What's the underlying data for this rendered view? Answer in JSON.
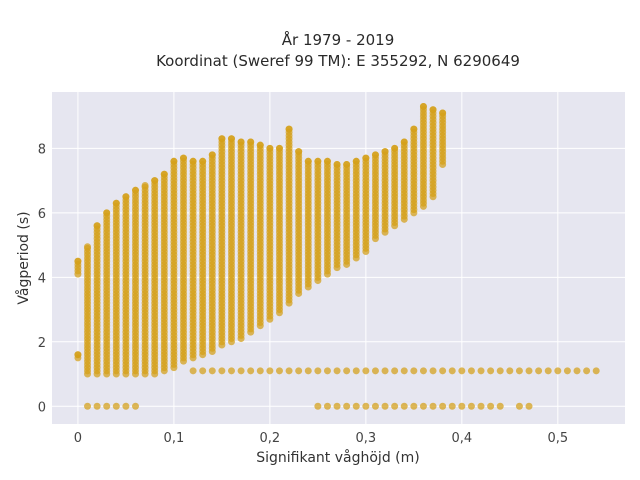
{
  "chart_data": {
    "type": "scatter",
    "title": "År 1979 - 2019",
    "subtitle": "Koordinat (Sweref 99 TM): E 355292, N 6290649",
    "xlabel": "Signifikant våghöjd (m)",
    "ylabel": "Vågperiod (s)",
    "xlim": [
      -0.027,
      0.57
    ],
    "ylim": [
      -0.55,
      9.75
    ],
    "xticks": [
      0,
      0.1,
      0.2,
      0.3,
      0.4,
      0.5
    ],
    "xtick_labels": [
      "0",
      "0,1",
      "0,2",
      "0,3",
      "0,4",
      "0,5"
    ],
    "yticks": [
      0,
      2,
      4,
      6,
      8
    ],
    "ytick_labels": [
      "0",
      "2",
      "4",
      "6",
      "8"
    ],
    "grid": true,
    "legend": "none",
    "colors": {
      "marker": "#d4a017",
      "plot_bg": "#e6e6f0",
      "grid": "#ffffff"
    },
    "columns": [
      {
        "x": 0.0,
        "ymin": 1.5,
        "ymax": 1.6
      },
      {
        "x": 0.0,
        "ymin": 4.1,
        "ymax": 4.5
      },
      {
        "x": 0.01,
        "ymin": 1.0,
        "ymax": 4.95
      },
      {
        "x": 0.02,
        "ymin": 1.0,
        "ymax": 5.6
      },
      {
        "x": 0.03,
        "ymin": 1.0,
        "ymax": 6.0
      },
      {
        "x": 0.04,
        "ymin": 1.0,
        "ymax": 6.3
      },
      {
        "x": 0.05,
        "ymin": 1.0,
        "ymax": 6.5
      },
      {
        "x": 0.06,
        "ymin": 1.0,
        "ymax": 6.7
      },
      {
        "x": 0.07,
        "ymin": 1.0,
        "ymax": 6.85
      },
      {
        "x": 0.08,
        "ymin": 1.0,
        "ymax": 7.0
      },
      {
        "x": 0.09,
        "ymin": 1.1,
        "ymax": 7.2
      },
      {
        "x": 0.1,
        "ymin": 1.2,
        "ymax": 7.6
      },
      {
        "x": 0.11,
        "ymin": 1.4,
        "ymax": 7.7
      },
      {
        "x": 0.12,
        "ymin": 1.5,
        "ymax": 7.6
      },
      {
        "x": 0.13,
        "ymin": 1.6,
        "ymax": 7.6
      },
      {
        "x": 0.14,
        "ymin": 1.7,
        "ymax": 7.8
      },
      {
        "x": 0.15,
        "ymin": 1.9,
        "ymax": 8.3
      },
      {
        "x": 0.16,
        "ymin": 2.0,
        "ymax": 8.3
      },
      {
        "x": 0.17,
        "ymin": 2.1,
        "ymax": 8.2
      },
      {
        "x": 0.18,
        "ymin": 2.3,
        "ymax": 8.2
      },
      {
        "x": 0.19,
        "ymin": 2.5,
        "ymax": 8.1
      },
      {
        "x": 0.2,
        "ymin": 2.7,
        "ymax": 8.0
      },
      {
        "x": 0.21,
        "ymin": 2.9,
        "ymax": 8.0
      },
      {
        "x": 0.22,
        "ymin": 3.2,
        "ymax": 8.6
      },
      {
        "x": 0.23,
        "ymin": 3.5,
        "ymax": 7.9
      },
      {
        "x": 0.24,
        "ymin": 3.7,
        "ymax": 7.6
      },
      {
        "x": 0.25,
        "ymin": 3.9,
        "ymax": 7.6
      },
      {
        "x": 0.26,
        "ymin": 4.1,
        "ymax": 7.6
      },
      {
        "x": 0.27,
        "ymin": 4.3,
        "ymax": 7.5
      },
      {
        "x": 0.28,
        "ymin": 4.4,
        "ymax": 7.5
      },
      {
        "x": 0.29,
        "ymin": 4.6,
        "ymax": 7.6
      },
      {
        "x": 0.3,
        "ymin": 4.8,
        "ymax": 7.7
      },
      {
        "x": 0.31,
        "ymin": 5.2,
        "ymax": 7.8
      },
      {
        "x": 0.32,
        "ymin": 5.4,
        "ymax": 7.9
      },
      {
        "x": 0.33,
        "ymin": 5.6,
        "ymax": 8.0
      },
      {
        "x": 0.34,
        "ymin": 5.8,
        "ymax": 8.2
      },
      {
        "x": 0.35,
        "ymin": 6.0,
        "ymax": 8.6
      },
      {
        "x": 0.36,
        "ymin": 6.2,
        "ymax": 9.3
      },
      {
        "x": 0.37,
        "ymin": 6.5,
        "ymax": 9.2
      },
      {
        "x": 0.38,
        "ymin": 7.5,
        "ymax": 9.1
      }
    ],
    "band_1": {
      "y": 1.1,
      "x_start": 0.12,
      "x_end": 0.54,
      "step": 0.01
    },
    "band_0": [
      {
        "x_start": 0.01,
        "x_end": 0.06,
        "step": 0.01
      },
      {
        "x_start": 0.25,
        "x_end": 0.44,
        "step": 0.01
      },
      {
        "x_start": 0.46,
        "x_end": 0.47,
        "step": 0.01
      }
    ]
  }
}
